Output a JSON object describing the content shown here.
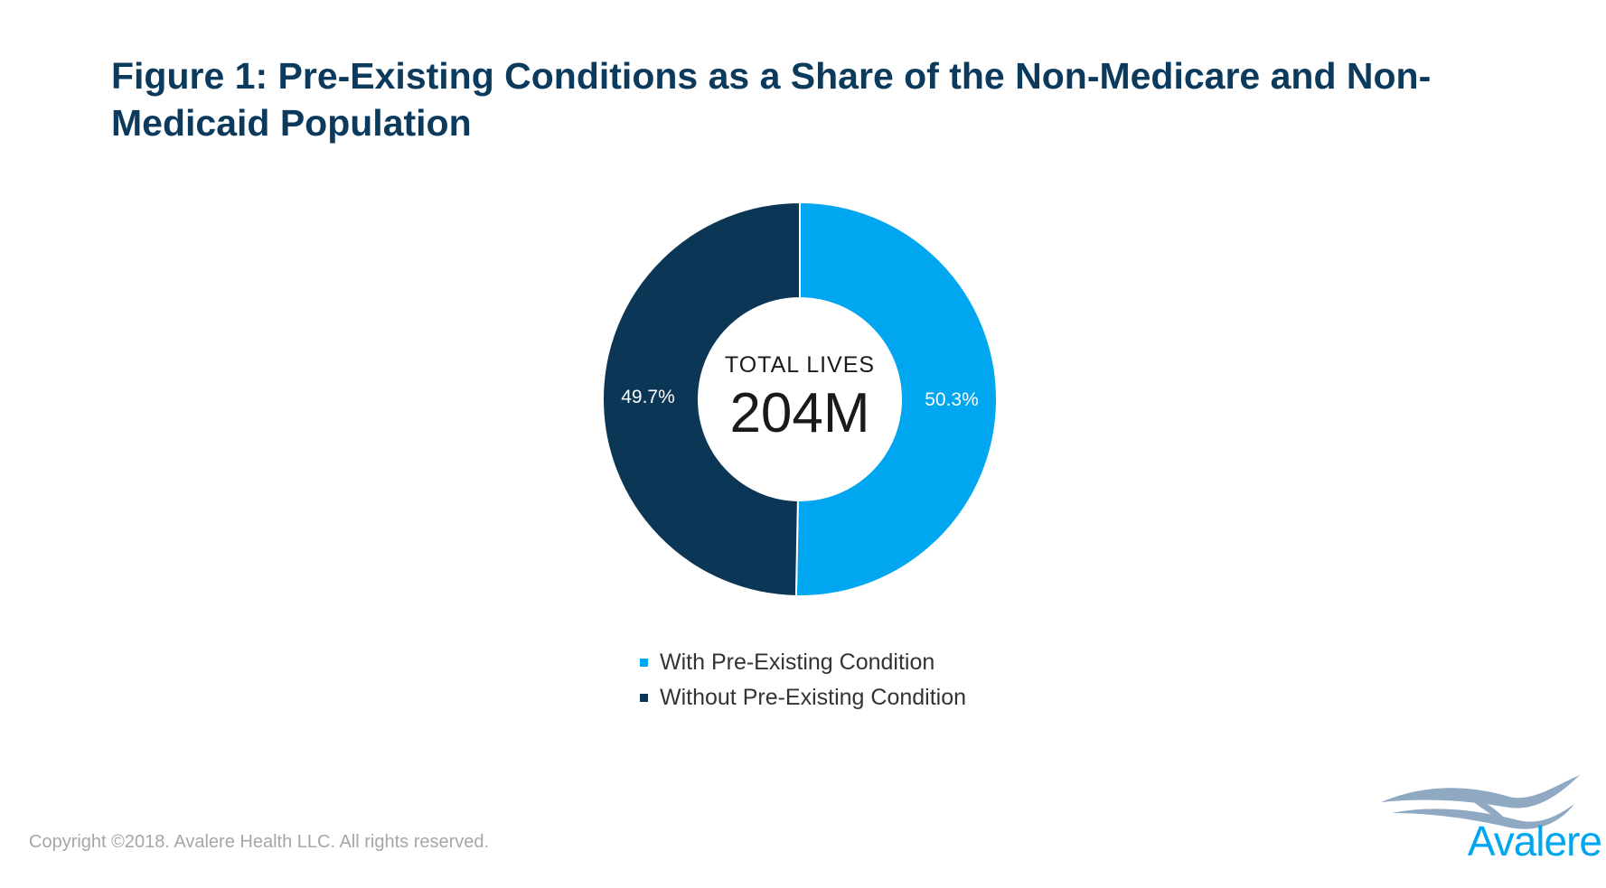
{
  "title": "Figure 1: Pre-Existing Conditions as a Share of the Non-Medicare and Non-Medicaid Population",
  "chart_data": {
    "type": "pie",
    "style": "donut",
    "title": "Figure 1: Pre-Existing Conditions as a Share of the Non-Medicare and Non-Medicaid Population",
    "categories": [
      "With Pre-Existing Condition",
      "Without Pre-Existing Condition"
    ],
    "values": [
      50.3,
      49.7
    ],
    "data_labels": [
      "50.3%",
      "49.7%"
    ],
    "colors": [
      "#00a6ef",
      "#0b3655"
    ],
    "center_caption": "TOTAL LIVES",
    "center_value": "204M",
    "legend_position": "bottom"
  },
  "footer": {
    "copyright": "Copyright ©2018. Avalere Health LLC. All rights reserved."
  },
  "logo": {
    "name": "avalere-logo-icon",
    "text": "Avalere",
    "color": "#00a6ef",
    "swoosh_color": "#8fa9c2"
  }
}
